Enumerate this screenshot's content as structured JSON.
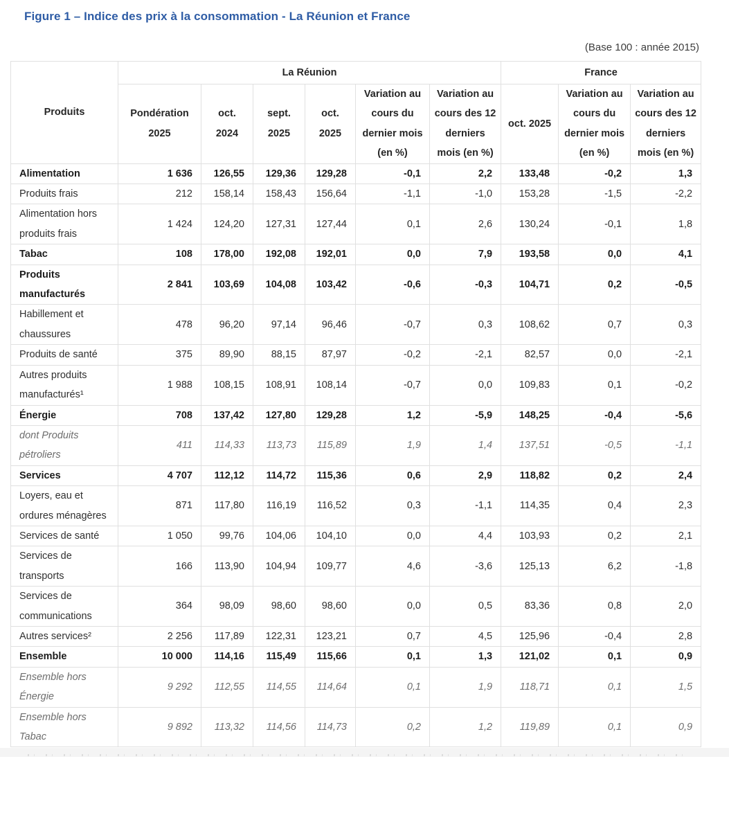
{
  "figure": {
    "title": "Figure 1 – Indice des prix à la consommation - La Réunion et France",
    "base_note": "(Base 100 : année 2015)"
  },
  "chart_data": {
    "type": "table",
    "title": "Indice des prix à la consommation - La Réunion et France",
    "base": "Base 100 : année 2015",
    "corner_header": "Produits",
    "column_groups": [
      {
        "label": "La Réunion",
        "span": 6
      },
      {
        "label": "France",
        "span": 3
      }
    ],
    "columns": [
      "Pondération 2025",
      "oct. 2024",
      "sept. 2025",
      "oct. 2025",
      "Variation au cours du dernier mois (en %)",
      "Variation au cours des 12 derniers mois (en %)",
      "oct. 2025",
      "Variation au cours du dernier mois (en %)",
      "Variation au cours des 12 derniers mois (en %)"
    ],
    "rows": [
      {
        "label": "Alimentation",
        "style": "bold",
        "values": [
          "1 636",
          "126,55",
          "129,36",
          "129,28",
          "-0,1",
          "2,2",
          "133,48",
          "-0,2",
          "1,3"
        ]
      },
      {
        "label": "Produits frais",
        "style": "normal",
        "values": [
          "212",
          "158,14",
          "158,43",
          "156,64",
          "-1,1",
          "-1,0",
          "153,28",
          "-1,5",
          "-2,2"
        ]
      },
      {
        "label": "Alimentation hors produits frais",
        "style": "normal",
        "values": [
          "1 424",
          "124,20",
          "127,31",
          "127,44",
          "0,1",
          "2,6",
          "130,24",
          "-0,1",
          "1,8"
        ]
      },
      {
        "label": "Tabac",
        "style": "bold",
        "values": [
          "108",
          "178,00",
          "192,08",
          "192,01",
          "0,0",
          "7,9",
          "193,58",
          "0,0",
          "4,1"
        ]
      },
      {
        "label": "Produits manufacturés",
        "style": "bold",
        "values": [
          "2 841",
          "103,69",
          "104,08",
          "103,42",
          "-0,6",
          "-0,3",
          "104,71",
          "0,2",
          "-0,5"
        ]
      },
      {
        "label": "Habillement et chaussures",
        "style": "normal",
        "values": [
          "478",
          "96,20",
          "97,14",
          "96,46",
          "-0,7",
          "0,3",
          "108,62",
          "0,7",
          "0,3"
        ]
      },
      {
        "label": "Produits de santé",
        "style": "normal",
        "values": [
          "375",
          "89,90",
          "88,15",
          "87,97",
          "-0,2",
          "-2,1",
          "82,57",
          "0,0",
          "-2,1"
        ]
      },
      {
        "label": "Autres produits manufacturés¹",
        "style": "normal",
        "values": [
          "1 988",
          "108,15",
          "108,91",
          "108,14",
          "-0,7",
          "0,0",
          "109,83",
          "0,1",
          "-0,2"
        ]
      },
      {
        "label": "Énergie",
        "style": "bold",
        "values": [
          "708",
          "137,42",
          "127,80",
          "129,28",
          "1,2",
          "-5,9",
          "148,25",
          "-0,4",
          "-5,6"
        ]
      },
      {
        "label": "dont Produits pétroliers",
        "style": "italic",
        "values": [
          "411",
          "114,33",
          "113,73",
          "115,89",
          "1,9",
          "1,4",
          "137,51",
          "-0,5",
          "-1,1"
        ]
      },
      {
        "label": "Services",
        "style": "bold",
        "values": [
          "4 707",
          "112,12",
          "114,72",
          "115,36",
          "0,6",
          "2,9",
          "118,82",
          "0,2",
          "2,4"
        ]
      },
      {
        "label": "Loyers, eau et ordures ménagères",
        "style": "normal",
        "values": [
          "871",
          "117,80",
          "116,19",
          "116,52",
          "0,3",
          "-1,1",
          "114,35",
          "0,4",
          "2,3"
        ]
      },
      {
        "label": "Services de santé",
        "style": "normal",
        "values": [
          "1 050",
          "99,76",
          "104,06",
          "104,10",
          "0,0",
          "4,4",
          "103,93",
          "0,2",
          "2,1"
        ]
      },
      {
        "label": "Services de transports",
        "style": "normal",
        "values": [
          "166",
          "113,90",
          "104,94",
          "109,77",
          "4,6",
          "-3,6",
          "125,13",
          "6,2",
          "-1,8"
        ]
      },
      {
        "label": "Services de communications",
        "style": "normal",
        "values": [
          "364",
          "98,09",
          "98,60",
          "98,60",
          "0,0",
          "0,5",
          "83,36",
          "0,8",
          "2,0"
        ]
      },
      {
        "label": "Autres services²",
        "style": "normal",
        "values": [
          "2 256",
          "117,89",
          "122,31",
          "123,21",
          "0,7",
          "4,5",
          "125,96",
          "-0,4",
          "2,8"
        ]
      },
      {
        "label": "Ensemble",
        "style": "bold",
        "values": [
          "10 000",
          "114,16",
          "115,49",
          "115,66",
          "0,1",
          "1,3",
          "121,02",
          "0,1",
          "0,9"
        ]
      },
      {
        "label": "Ensemble hors Énergie",
        "style": "italic",
        "values": [
          "9 292",
          "112,55",
          "114,55",
          "114,64",
          "0,1",
          "1,9",
          "118,71",
          "0,1",
          "1,5"
        ]
      },
      {
        "label": "Ensemble hors Tabac",
        "style": "italic",
        "values": [
          "9 892",
          "113,32",
          "114,56",
          "114,73",
          "0,2",
          "1,2",
          "119,89",
          "0,1",
          "0,9"
        ]
      }
    ]
  },
  "colors": {
    "title_blue": "#2e5ca5",
    "border_gray": "#e0e0e0",
    "italic_gray": "#6d6d6d",
    "footer_strip": "#f4f4f4"
  }
}
